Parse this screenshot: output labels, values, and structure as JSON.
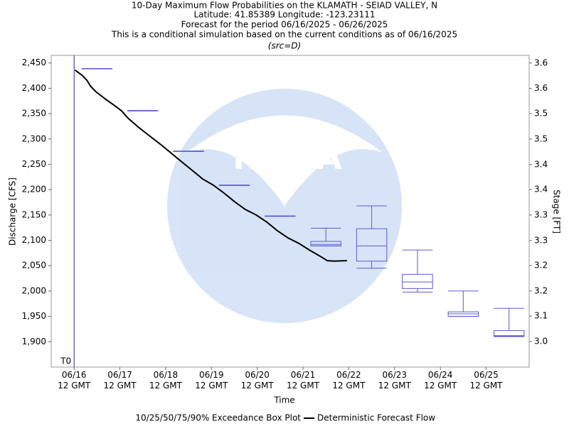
{
  "chart_data": {
    "type": "box",
    "title_lines": [
      "10-Day Maximum Flow Probabilities on the KLAMATH - SEIAD VALLEY, N",
      "Latitude: 41.85389 Longitude: -123.23111",
      "Forecast for the period 06/16/2025 - 06/26/2025",
      "This is a conditional simulation based on the current conditions as of 06/16/2025"
    ],
    "subtitle": "(src=D)",
    "xlabel": "Time",
    "ylabel": "Discharge [CFS]",
    "y2label": "Stage [FT]",
    "marker": {
      "x": 0,
      "label": "T0"
    },
    "xlim": [
      -0.5,
      9.94
    ],
    "xticks": [
      {
        "value": 0,
        "label": "06/16\n12 GMT"
      },
      {
        "value": 1,
        "label": "06/17\n12 GMT"
      },
      {
        "value": 2,
        "label": "06/18\n12 GMT"
      },
      {
        "value": 3,
        "label": "06/19\n12 GMT"
      },
      {
        "value": 4,
        "label": "06/20\n12 GMT"
      },
      {
        "value": 5,
        "label": "06/21\n12 GMT"
      },
      {
        "value": 6,
        "label": "06/22\n12 GMT"
      },
      {
        "value": 7,
        "label": "06/23\n12 GMT"
      },
      {
        "value": 8,
        "label": "06/24\n12 GMT"
      },
      {
        "value": 9,
        "label": "06/25\n12 GMT"
      }
    ],
    "ylim": [
      1850,
      2465
    ],
    "yticks": [
      {
        "value": 1900,
        "label": "1,900"
      },
      {
        "value": 1950,
        "label": "1,950"
      },
      {
        "value": 2000,
        "label": "2,000"
      },
      {
        "value": 2050,
        "label": "2,050"
      },
      {
        "value": 2100,
        "label": "2,100"
      },
      {
        "value": 2150,
        "label": "2,150"
      },
      {
        "value": 2200,
        "label": "2,200"
      },
      {
        "value": 2250,
        "label": "2,250"
      },
      {
        "value": 2300,
        "label": "2,300"
      },
      {
        "value": 2350,
        "label": "2,350"
      },
      {
        "value": 2400,
        "label": "2,400"
      },
      {
        "value": 2450,
        "label": "2,450"
      }
    ],
    "y2lim": [
      2.994,
      3.642
    ],
    "y2ticks": [
      {
        "value": 3.047,
        "label": "3.0"
      },
      {
        "value": 3.1,
        "label": "3.1"
      },
      {
        "value": 3.152,
        "label": "3.2"
      },
      {
        "value": 3.205,
        "label": "3.2"
      },
      {
        "value": 3.257,
        "label": "3.3"
      },
      {
        "value": 3.31,
        "label": "3.3"
      },
      {
        "value": 3.363,
        "label": "3.4"
      },
      {
        "value": 3.415,
        "label": "3.4"
      },
      {
        "value": 3.468,
        "label": "3.5"
      },
      {
        "value": 3.521,
        "label": "3.5"
      },
      {
        "value": 3.573,
        "label": "3.6"
      },
      {
        "value": 3.626,
        "label": "3.6"
      }
    ],
    "box_series": {
      "name": "10/25/50/75/90% Exceedance Box Plot",
      "color": "#5a5ad2",
      "x": [
        0.5,
        1.5,
        2.5,
        3.5,
        4.5,
        5.5,
        6.5,
        7.5,
        8.5,
        9.5
      ],
      "whislo": [
        2439,
        2356,
        2276,
        2209,
        2148,
        2089,
        2045,
        1998,
        1950,
        1910
      ],
      "q1": [
        2439,
        2356,
        2276,
        2209,
        2148,
        2089,
        2059,
        2005,
        1950,
        1911
      ],
      "med": [
        2439,
        2356,
        2276,
        2209,
        2148,
        2092,
        2089,
        2018,
        1955,
        1912
      ],
      "q3": [
        2439,
        2356,
        2276,
        2209,
        2148,
        2098,
        2123,
        2033,
        1959,
        1922
      ],
      "whishi": [
        2439,
        2356,
        2276,
        2209,
        2148,
        2124,
        2168,
        2081,
        2000,
        1966
      ]
    },
    "line_series": {
      "name": "Deterministic Forecast Flow",
      "color": "#000000",
      "x": [
        0.02,
        0.17,
        0.28,
        0.36,
        0.48,
        0.71,
        0.87,
        1.03,
        1.18,
        1.41,
        1.65,
        1.88,
        2.11,
        2.35,
        2.58,
        2.81,
        3.04,
        3.28,
        3.51,
        3.74,
        3.98,
        4.21,
        4.44,
        4.67,
        4.91,
        5.14,
        5.37,
        5.53,
        5.68,
        5.96
      ],
      "values": [
        2436,
        2426,
        2416,
        2404,
        2393,
        2377,
        2367,
        2356,
        2341,
        2323,
        2306,
        2290,
        2273,
        2255,
        2238,
        2221,
        2209,
        2193,
        2176,
        2161,
        2150,
        2136,
        2119,
        2105,
        2094,
        2081,
        2069,
        2060,
        2059,
        2060
      ]
    }
  }
}
